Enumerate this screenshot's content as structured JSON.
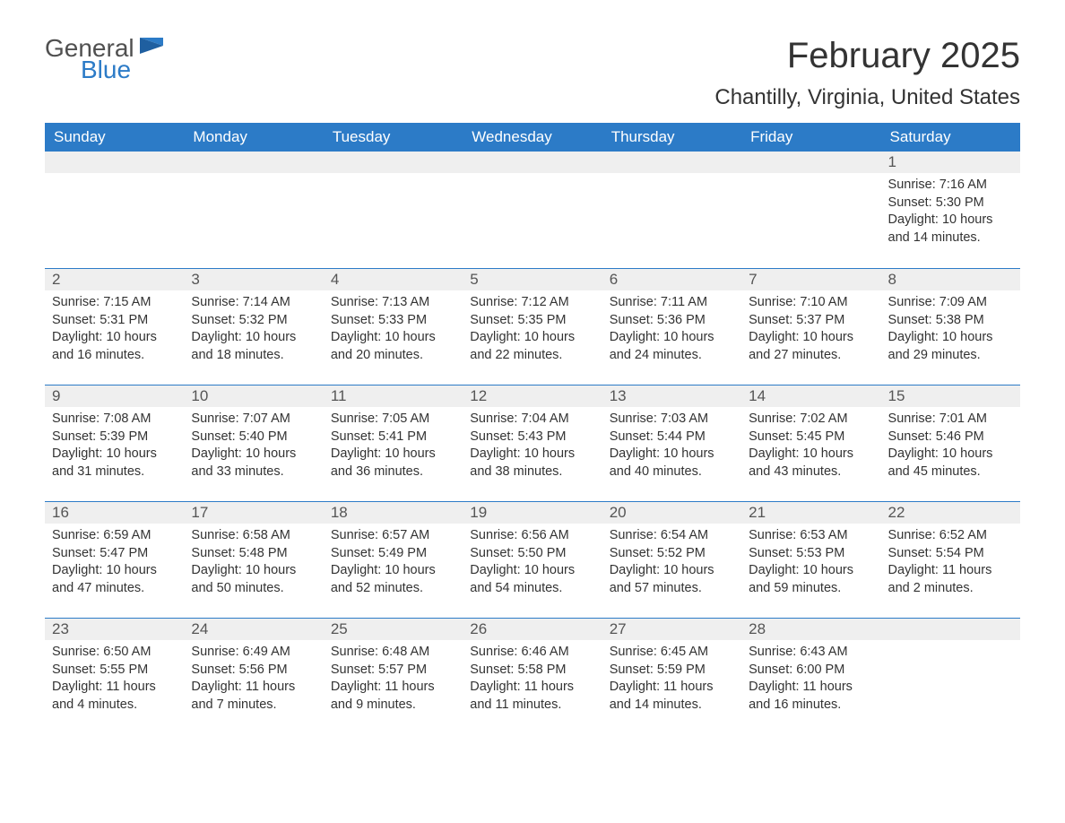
{
  "logo": {
    "general": "General",
    "blue": "Blue"
  },
  "title": "February 2025",
  "location": "Chantilly, Virginia, United States",
  "colors": {
    "header_bg": "#2c7bc7",
    "header_text": "#ffffff",
    "day_row_bg": "#efefef",
    "day_row_border": "#2c7bc7",
    "body_text": "#333333",
    "logo_gray": "#505050",
    "logo_blue": "#2c7bc7",
    "page_bg": "#ffffff"
  },
  "day_headers": [
    "Sunday",
    "Monday",
    "Tuesday",
    "Wednesday",
    "Thursday",
    "Friday",
    "Saturday"
  ],
  "weeks": [
    [
      {
        "n": "",
        "sunrise": "",
        "sunset": "",
        "daylight": ""
      },
      {
        "n": "",
        "sunrise": "",
        "sunset": "",
        "daylight": ""
      },
      {
        "n": "",
        "sunrise": "",
        "sunset": "",
        "daylight": ""
      },
      {
        "n": "",
        "sunrise": "",
        "sunset": "",
        "daylight": ""
      },
      {
        "n": "",
        "sunrise": "",
        "sunset": "",
        "daylight": ""
      },
      {
        "n": "",
        "sunrise": "",
        "sunset": "",
        "daylight": ""
      },
      {
        "n": "1",
        "sunrise": "Sunrise: 7:16 AM",
        "sunset": "Sunset: 5:30 PM",
        "daylight": "Daylight: 10 hours and 14 minutes."
      }
    ],
    [
      {
        "n": "2",
        "sunrise": "Sunrise: 7:15 AM",
        "sunset": "Sunset: 5:31 PM",
        "daylight": "Daylight: 10 hours and 16 minutes."
      },
      {
        "n": "3",
        "sunrise": "Sunrise: 7:14 AM",
        "sunset": "Sunset: 5:32 PM",
        "daylight": "Daylight: 10 hours and 18 minutes."
      },
      {
        "n": "4",
        "sunrise": "Sunrise: 7:13 AM",
        "sunset": "Sunset: 5:33 PM",
        "daylight": "Daylight: 10 hours and 20 minutes."
      },
      {
        "n": "5",
        "sunrise": "Sunrise: 7:12 AM",
        "sunset": "Sunset: 5:35 PM",
        "daylight": "Daylight: 10 hours and 22 minutes."
      },
      {
        "n": "6",
        "sunrise": "Sunrise: 7:11 AM",
        "sunset": "Sunset: 5:36 PM",
        "daylight": "Daylight: 10 hours and 24 minutes."
      },
      {
        "n": "7",
        "sunrise": "Sunrise: 7:10 AM",
        "sunset": "Sunset: 5:37 PM",
        "daylight": "Daylight: 10 hours and 27 minutes."
      },
      {
        "n": "8",
        "sunrise": "Sunrise: 7:09 AM",
        "sunset": "Sunset: 5:38 PM",
        "daylight": "Daylight: 10 hours and 29 minutes."
      }
    ],
    [
      {
        "n": "9",
        "sunrise": "Sunrise: 7:08 AM",
        "sunset": "Sunset: 5:39 PM",
        "daylight": "Daylight: 10 hours and 31 minutes."
      },
      {
        "n": "10",
        "sunrise": "Sunrise: 7:07 AM",
        "sunset": "Sunset: 5:40 PM",
        "daylight": "Daylight: 10 hours and 33 minutes."
      },
      {
        "n": "11",
        "sunrise": "Sunrise: 7:05 AM",
        "sunset": "Sunset: 5:41 PM",
        "daylight": "Daylight: 10 hours and 36 minutes."
      },
      {
        "n": "12",
        "sunrise": "Sunrise: 7:04 AM",
        "sunset": "Sunset: 5:43 PM",
        "daylight": "Daylight: 10 hours and 38 minutes."
      },
      {
        "n": "13",
        "sunrise": "Sunrise: 7:03 AM",
        "sunset": "Sunset: 5:44 PM",
        "daylight": "Daylight: 10 hours and 40 minutes."
      },
      {
        "n": "14",
        "sunrise": "Sunrise: 7:02 AM",
        "sunset": "Sunset: 5:45 PM",
        "daylight": "Daylight: 10 hours and 43 minutes."
      },
      {
        "n": "15",
        "sunrise": "Sunrise: 7:01 AM",
        "sunset": "Sunset: 5:46 PM",
        "daylight": "Daylight: 10 hours and 45 minutes."
      }
    ],
    [
      {
        "n": "16",
        "sunrise": "Sunrise: 6:59 AM",
        "sunset": "Sunset: 5:47 PM",
        "daylight": "Daylight: 10 hours and 47 minutes."
      },
      {
        "n": "17",
        "sunrise": "Sunrise: 6:58 AM",
        "sunset": "Sunset: 5:48 PM",
        "daylight": "Daylight: 10 hours and 50 minutes."
      },
      {
        "n": "18",
        "sunrise": "Sunrise: 6:57 AM",
        "sunset": "Sunset: 5:49 PM",
        "daylight": "Daylight: 10 hours and 52 minutes."
      },
      {
        "n": "19",
        "sunrise": "Sunrise: 6:56 AM",
        "sunset": "Sunset: 5:50 PM",
        "daylight": "Daylight: 10 hours and 54 minutes."
      },
      {
        "n": "20",
        "sunrise": "Sunrise: 6:54 AM",
        "sunset": "Sunset: 5:52 PM",
        "daylight": "Daylight: 10 hours and 57 minutes."
      },
      {
        "n": "21",
        "sunrise": "Sunrise: 6:53 AM",
        "sunset": "Sunset: 5:53 PM",
        "daylight": "Daylight: 10 hours and 59 minutes."
      },
      {
        "n": "22",
        "sunrise": "Sunrise: 6:52 AM",
        "sunset": "Sunset: 5:54 PM",
        "daylight": "Daylight: 11 hours and 2 minutes."
      }
    ],
    [
      {
        "n": "23",
        "sunrise": "Sunrise: 6:50 AM",
        "sunset": "Sunset: 5:55 PM",
        "daylight": "Daylight: 11 hours and 4 minutes."
      },
      {
        "n": "24",
        "sunrise": "Sunrise: 6:49 AM",
        "sunset": "Sunset: 5:56 PM",
        "daylight": "Daylight: 11 hours and 7 minutes."
      },
      {
        "n": "25",
        "sunrise": "Sunrise: 6:48 AM",
        "sunset": "Sunset: 5:57 PM",
        "daylight": "Daylight: 11 hours and 9 minutes."
      },
      {
        "n": "26",
        "sunrise": "Sunrise: 6:46 AM",
        "sunset": "Sunset: 5:58 PM",
        "daylight": "Daylight: 11 hours and 11 minutes."
      },
      {
        "n": "27",
        "sunrise": "Sunrise: 6:45 AM",
        "sunset": "Sunset: 5:59 PM",
        "daylight": "Daylight: 11 hours and 14 minutes."
      },
      {
        "n": "28",
        "sunrise": "Sunrise: 6:43 AM",
        "sunset": "Sunset: 6:00 PM",
        "daylight": "Daylight: 11 hours and 16 minutes."
      },
      {
        "n": "",
        "sunrise": "",
        "sunset": "",
        "daylight": ""
      }
    ]
  ]
}
